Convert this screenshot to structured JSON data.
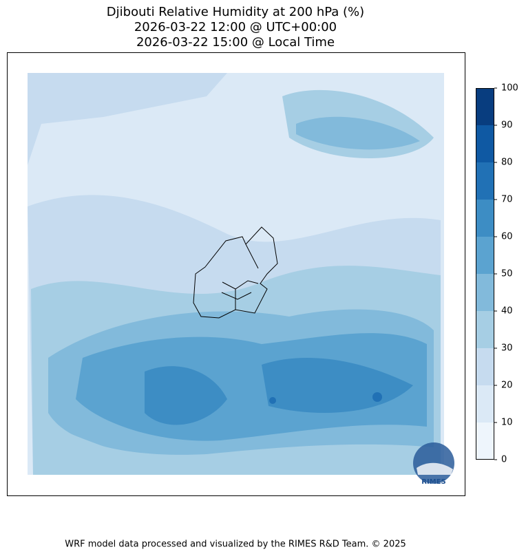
{
  "title": [
    "Djibouti Relative Humidity at 200 hPa (%)",
    "2026-03-22 12:00 @ UTC+00:00",
    "2026-03-22 15:00 @ Local Time"
  ],
  "colorbar": {
    "ticks": [
      0,
      10,
      20,
      30,
      40,
      50,
      60,
      70,
      80,
      90,
      100
    ],
    "colors": [
      "#eef5fc",
      "#dbe9f6",
      "#c6dbef",
      "#a6cee4",
      "#82badb",
      "#5ba3d0",
      "#3d8dc4",
      "#2171b5",
      "#0f59a3",
      "#083d7f"
    ]
  },
  "logo": "RIMES",
  "footer": "WRF model data processed and visualized by the RIMES R&D Team. © 2025"
}
